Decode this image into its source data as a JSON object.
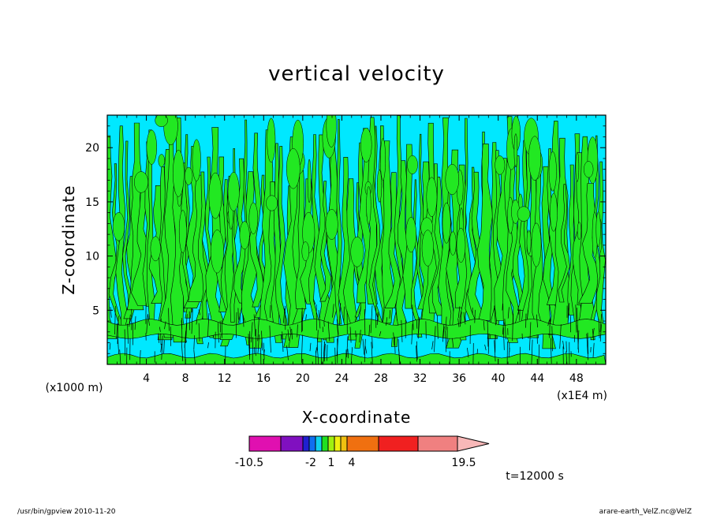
{
  "chart_data": {
    "type": "heatmap",
    "title": "vertical velocity",
    "xlabel": "X-coordinate",
    "ylabel": "Z-coordinate",
    "x_unit": "(x1E4 m)",
    "y_unit": "(x1000 m)",
    "xlim": [
      0,
      51
    ],
    "ylim": [
      0,
      23
    ],
    "x_ticks": [
      "4",
      "8",
      "12",
      "16",
      "20",
      "24",
      "28",
      "32",
      "36",
      "40",
      "44",
      "48"
    ],
    "y_ticks": [
      "5",
      "10",
      "15",
      "20"
    ],
    "x_tick_values": [
      4,
      8,
      12,
      16,
      20,
      24,
      28,
      32,
      36,
      40,
      44,
      48
    ],
    "y_tick_values": [
      5,
      10,
      15,
      20
    ],
    "colorbar": {
      "levels": [
        "-10.5",
        "-2",
        "1",
        "4",
        "19.5"
      ],
      "bins": [
        {
          "color": "#e010b0"
        },
        {
          "color": "#8010c0"
        },
        {
          "color": "#2020d0"
        },
        {
          "color": "#1070f0"
        },
        {
          "color": "#10d0f0"
        },
        {
          "color": "#20e020"
        },
        {
          "color": "#a0f010"
        },
        {
          "color": "#f0f010"
        },
        {
          "color": "#f0c010"
        },
        {
          "color": "#f07010"
        },
        {
          "color": "#f02020"
        },
        {
          "color": "#f08080"
        },
        {
          "color": "#f8b8b8"
        }
      ],
      "dominant_field_colors": [
        "#00e8ff",
        "#22e822"
      ]
    },
    "time_label": "t=12000 s"
  },
  "footer": {
    "left": "/usr/bin/gpview   2010-11-20",
    "right": "arare-earth_VelZ.nc@VelZ"
  }
}
